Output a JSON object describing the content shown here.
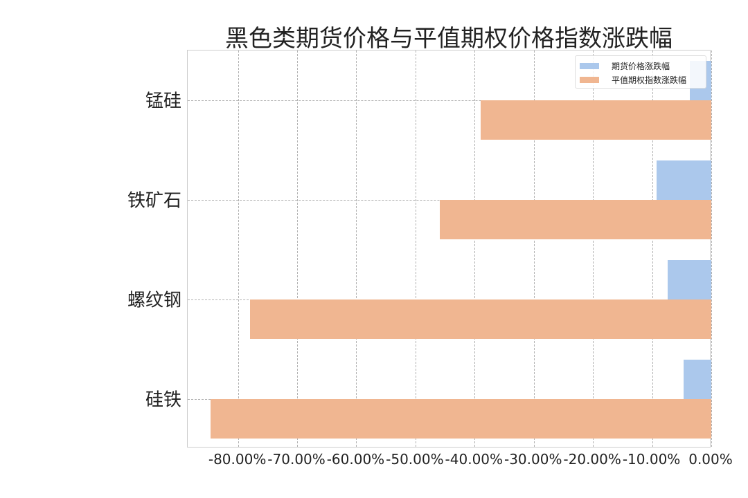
{
  "chart_data": {
    "type": "bar",
    "orientation": "horizontal",
    "title": "黑色类期货价格与平值期权价格指数涨跌幅",
    "categories": [
      "锰硅",
      "铁矿石",
      "螺纹钢",
      "硅铁"
    ],
    "series": [
      {
        "name": "期货价格涨跌幅",
        "color": "#abc8ec",
        "values": [
          -3.6,
          -9.3,
          -7.4,
          -4.7
        ]
      },
      {
        "name": "平值期权指数涨跌幅",
        "color": "#f0b691",
        "values": [
          -39.0,
          -45.9,
          -78.0,
          -84.6
        ]
      }
    ],
    "xlabel": "",
    "ylabel": "",
    "xticks": [
      "-80.00%",
      "-70.00%",
      "-60.00%",
      "-50.00%",
      "-40.00%",
      "-30.00%",
      "-20.00%",
      "-10.00%",
      "0.00%"
    ],
    "xlim": [
      -88.5,
      0
    ],
    "grid": true,
    "legend_position": "upper right"
  }
}
